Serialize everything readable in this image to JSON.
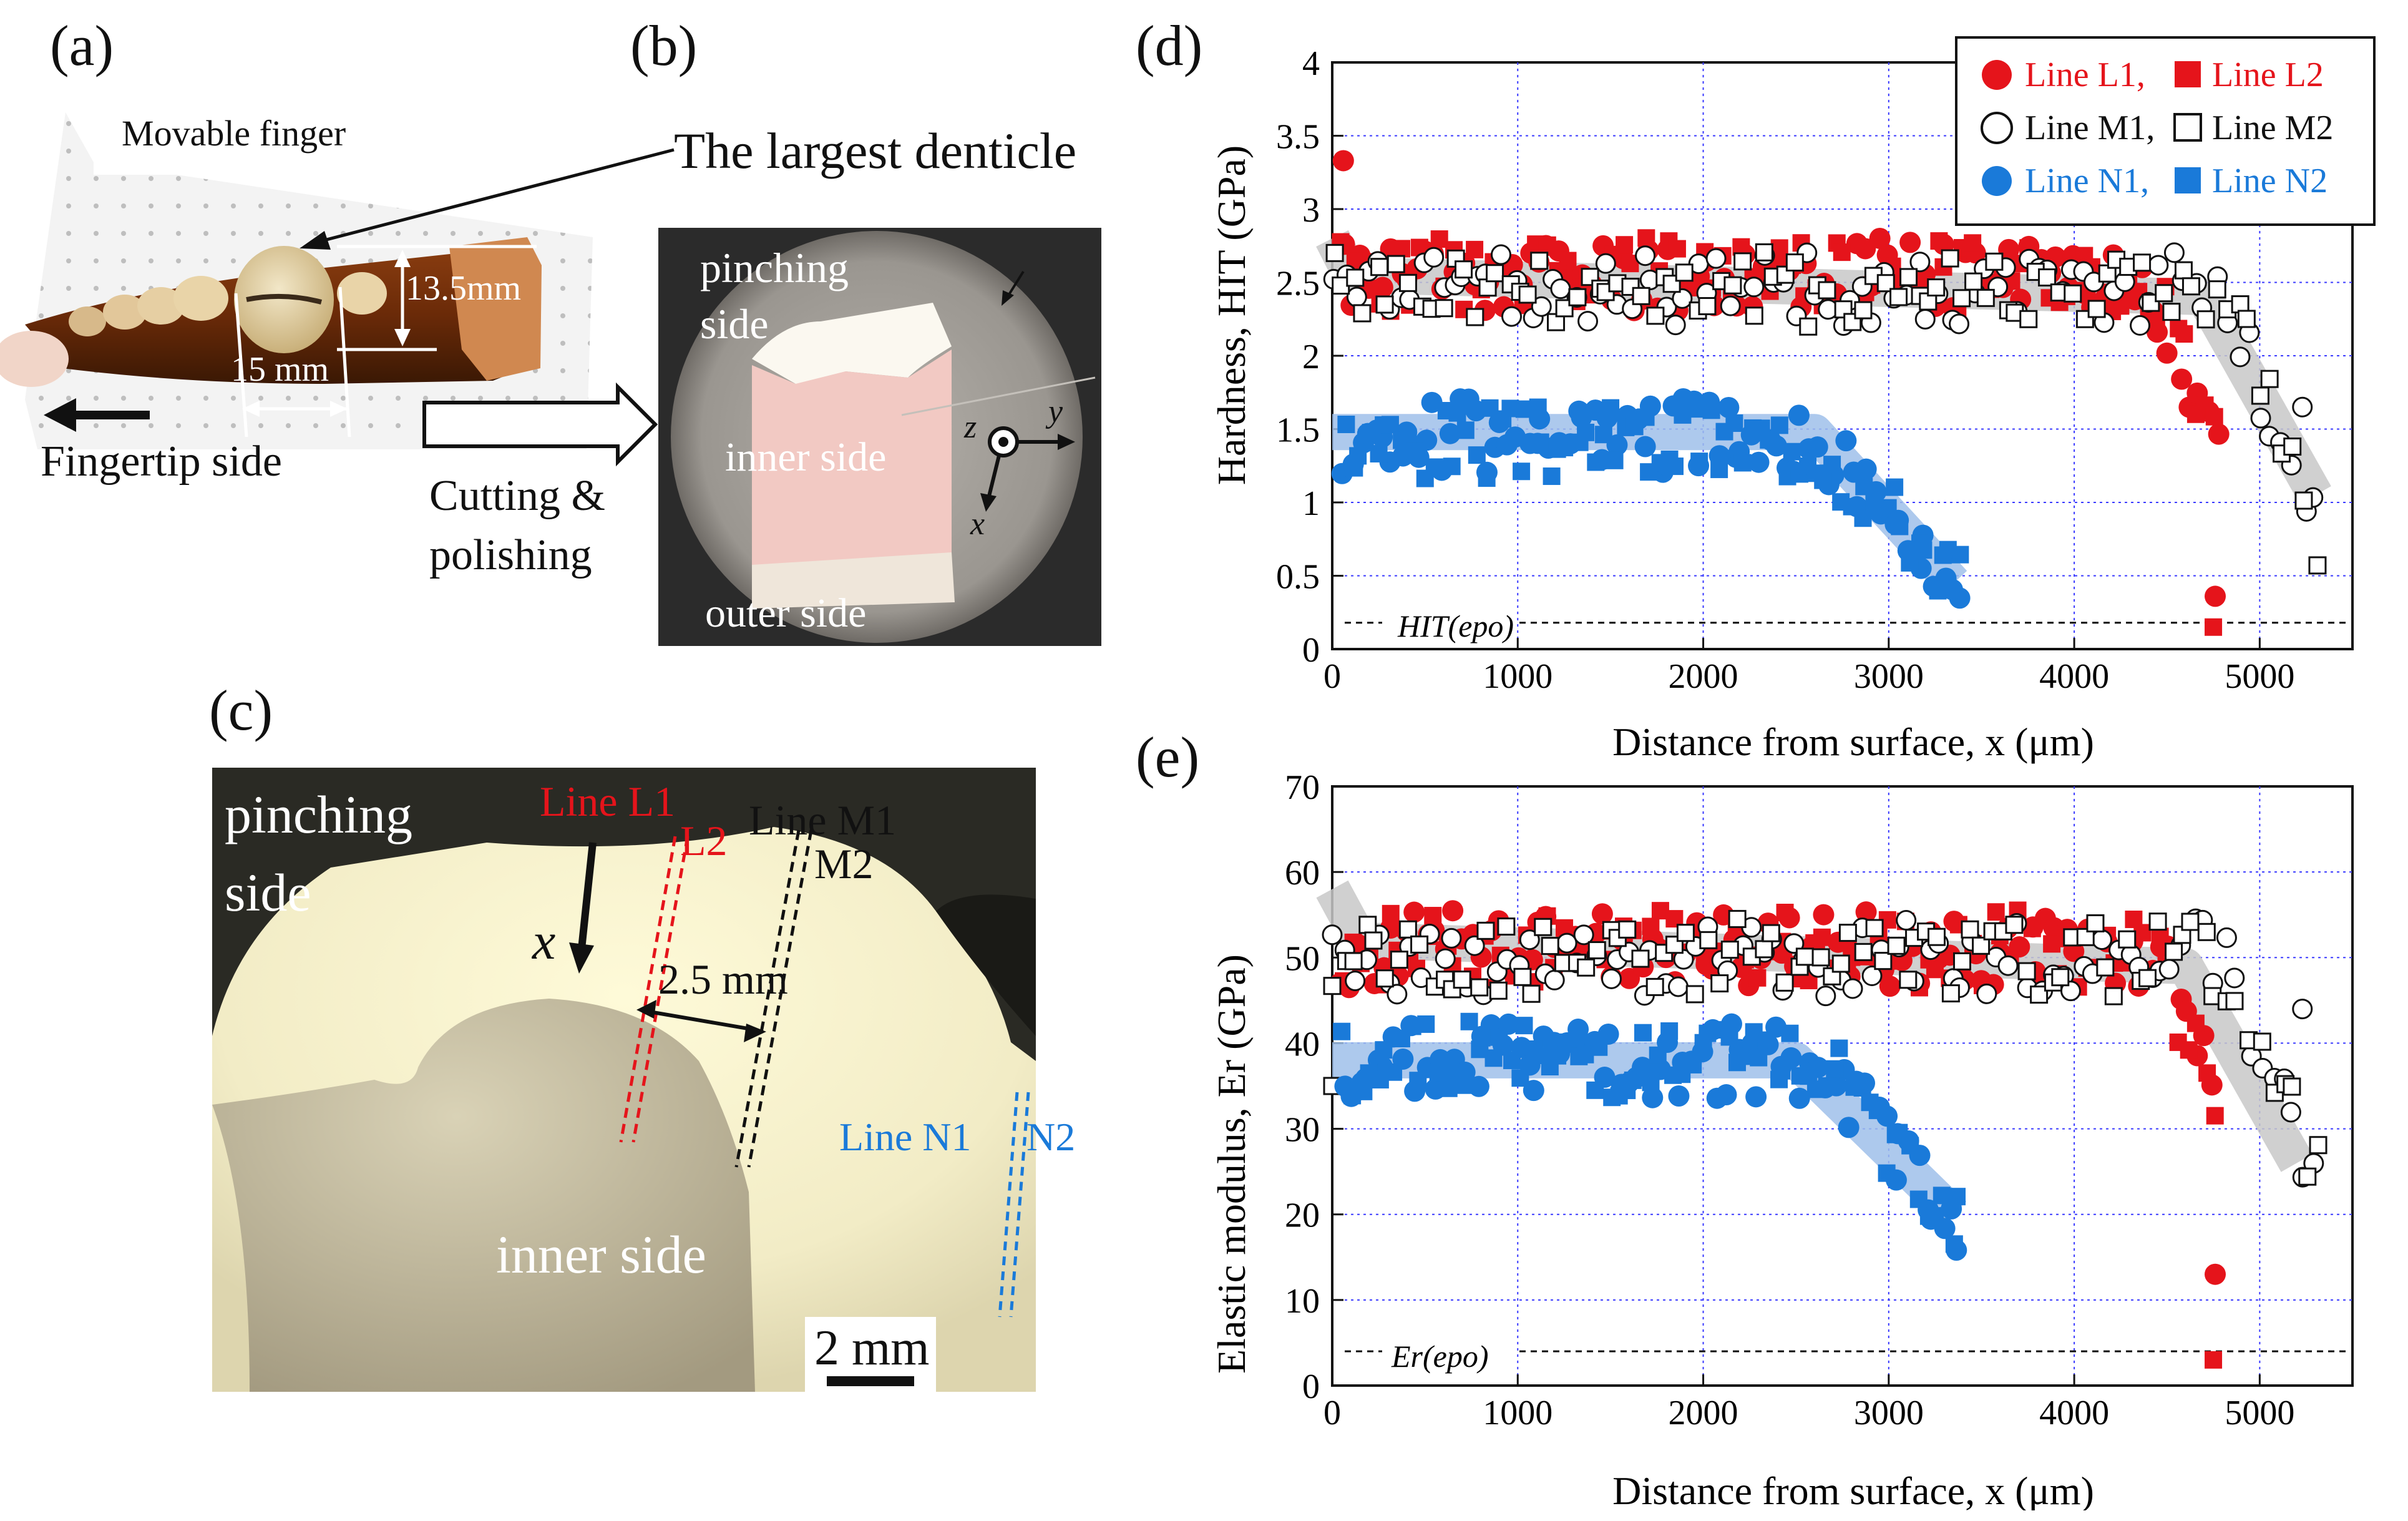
{
  "panel_labels": {
    "a": "(a)",
    "b": "(b)",
    "c": "(c)",
    "d": "(d)",
    "e": "(e)"
  },
  "panel_a": {
    "movable_finger": "Movable finger",
    "largest_denticle": "The largest denticle",
    "dim_height": "13.5mm",
    "dim_width": "15 mm",
    "fingertip": "Fingertip side",
    "cutting": "Cutting &",
    "polishing": "polishing"
  },
  "panel_b": {
    "pinching": "pinching",
    "side": "side",
    "inner": "inner side",
    "outer": "outer side",
    "axis_z": "z",
    "axis_y": "y",
    "axis_x": "x"
  },
  "panel_c": {
    "pinching": "pinching",
    "side": "side",
    "inner": "inner side",
    "x_arrow": "x",
    "line_l1": "Line L1",
    "l2": "L2",
    "line_m1": "Line M1",
    "m2": "M2",
    "spacing": "2.5 mm",
    "line_n1": "Line N1",
    "n2": "N2",
    "scale": "2 mm"
  },
  "colors": {
    "red": "#e5141b",
    "blue": "#1a7ad9",
    "black": "#111111",
    "gray_band": "#c8c8c8",
    "blue_band": "#9fc0ea",
    "grid": "#3a3aff"
  },
  "chart_data": [
    {
      "type": "scatter",
      "panel": "d",
      "title": "",
      "xlabel": "Distance from surface,  x (μm)",
      "ylabel": "Hardness, HIT (GPa)",
      "xlim": [
        0,
        5500
      ],
      "ylim": [
        0,
        4
      ],
      "xticks": [
        0,
        1000,
        2000,
        3000,
        4000,
        5000
      ],
      "yticks": [
        0,
        0.5,
        1,
        1.5,
        2,
        2.5,
        3,
        3.5,
        4
      ],
      "ytick_labels": [
        "0",
        "0.5",
        "1",
        "1.5",
        "2",
        "2.5",
        "3",
        "3.5",
        "4"
      ],
      "grid": true,
      "reference_line": {
        "label": "HIT(epo)",
        "y": 0.18
      },
      "legend": [
        "Line L1,",
        "Line L2",
        "Line M1,",
        "Line M2",
        "Line N1,",
        "Line N2"
      ],
      "bands": [
        {
          "name": "L/M trend",
          "color": "gray",
          "x": [
            0,
            100,
            4700,
            5300
          ],
          "y": [
            2.8,
            2.55,
            2.4,
            1.05
          ]
        },
        {
          "name": "N trend",
          "color": "blue",
          "x": [
            0,
            2600,
            3350
          ],
          "y": [
            1.48,
            1.48,
            0.45
          ]
        }
      ],
      "series": [
        {
          "name": "Line L1",
          "marker": "circle",
          "fill": "red",
          "mean": 2.55,
          "x_range": [
            60,
            4760
          ],
          "n": 95,
          "seed": 11,
          "tail": {
            "from": 4400,
            "to": 4760,
            "y_end": 1.4
          },
          "extra": [
            [
              60,
              3.33
            ],
            [
              4760,
              0.36
            ]
          ]
        },
        {
          "name": "Line L2",
          "marker": "square",
          "fill": "red",
          "mean": 2.55,
          "x_range": [
            60,
            4760
          ],
          "n": 95,
          "seed": 23,
          "tail": {
            "from": 4400,
            "to": 4760,
            "y_end": 1.5
          },
          "extra": [
            [
              4750,
              0.15
            ]
          ]
        },
        {
          "name": "Line M1",
          "marker": "circle",
          "fill": "none",
          "mean": 2.45,
          "x_range": [
            0,
            5300
          ],
          "n": 90,
          "seed": 37,
          "tail": {
            "from": 4800,
            "to": 5300,
            "y_end": 0.85
          },
          "extra": [
            [
              5230,
              1.65
            ]
          ]
        },
        {
          "name": "Line M2",
          "marker": "square",
          "fill": "none",
          "mean": 2.45,
          "x_range": [
            0,
            5300
          ],
          "n": 90,
          "seed": 41,
          "tail": {
            "from": 4800,
            "to": 5300,
            "y_end": 0.85
          },
          "extra": []
        },
        {
          "name": "Line N1",
          "marker": "circle",
          "fill": "blue",
          "mean": 1.45,
          "x_range": [
            60,
            3380
          ],
          "n": 75,
          "seed": 53,
          "tail": {
            "from": 2600,
            "to": 3380,
            "y_end": 0.45
          },
          "extra": []
        },
        {
          "name": "Line N2",
          "marker": "square",
          "fill": "blue",
          "mean": 1.42,
          "x_range": [
            60,
            3380
          ],
          "n": 75,
          "seed": 67,
          "tail": {
            "from": 2600,
            "to": 3380,
            "y_end": 0.5
          },
          "extra": []
        }
      ]
    },
    {
      "type": "scatter",
      "panel": "e",
      "title": "",
      "xlabel": "Distance from surface,  x (μm)",
      "ylabel": "Elastic modulus, Er (GPa)",
      "xlim": [
        0,
        5500
      ],
      "ylim": [
        0,
        70
      ],
      "xticks": [
        0,
        1000,
        2000,
        3000,
        4000,
        5000
      ],
      "yticks": [
        0,
        10,
        20,
        30,
        40,
        50,
        60,
        70
      ],
      "ytick_labels": [
        "0",
        "10",
        "20",
        "30",
        "40",
        "50",
        "60",
        "70"
      ],
      "grid": true,
      "reference_line": {
        "label": "Er(epo)",
        "y": 4
      },
      "bands": [
        {
          "name": "L/M trend",
          "color": "gray",
          "x": [
            0,
            150,
            4600,
            5200
          ],
          "y": [
            58,
            52,
            49,
            26
          ]
        },
        {
          "name": "N trend",
          "color": "blue",
          "x": [
            0,
            2500,
            3350
          ],
          "y": [
            38,
            38,
            20
          ]
        }
      ],
      "series": [
        {
          "name": "Line L1",
          "marker": "circle",
          "fill": "red",
          "mean": 51,
          "x_range": [
            60,
            4760
          ],
          "n": 95,
          "seed": 71,
          "tail": {
            "from": 4400,
            "to": 4760,
            "y_end": 37
          },
          "extra": [
            [
              4760,
              13
            ]
          ]
        },
        {
          "name": "Line L2",
          "marker": "square",
          "fill": "red",
          "mean": 51,
          "x_range": [
            60,
            4760
          ],
          "n": 95,
          "seed": 83,
          "tail": {
            "from": 4400,
            "to": 4760,
            "y_end": 35
          },
          "extra": [
            [
              4750,
              3
            ]
          ]
        },
        {
          "name": "Line M1",
          "marker": "circle",
          "fill": "none",
          "mean": 50,
          "x_range": [
            0,
            5300
          ],
          "n": 90,
          "seed": 97,
          "tail": {
            "from": 4800,
            "to": 5300,
            "y_end": 24
          },
          "extra": [
            [
              5230,
              44
            ]
          ]
        },
        {
          "name": "Line M2",
          "marker": "square",
          "fill": "none",
          "mean": 50,
          "x_range": [
            0,
            5300
          ],
          "n": 90,
          "seed": 101,
          "tail": {
            "from": 4800,
            "to": 5300,
            "y_end": 25
          },
          "extra": [
            [
              0,
              35
            ]
          ]
        },
        {
          "name": "Line N1",
          "marker": "circle",
          "fill": "blue",
          "mean": 38,
          "x_range": [
            60,
            3380
          ],
          "n": 75,
          "seed": 113,
          "tail": {
            "from": 2600,
            "to": 3380,
            "y_end": 18
          },
          "extra": []
        },
        {
          "name": "Line N2",
          "marker": "square",
          "fill": "blue",
          "mean": 38,
          "x_range": [
            60,
            3380
          ],
          "n": 75,
          "seed": 127,
          "tail": {
            "from": 2600,
            "to": 3380,
            "y_end": 20
          },
          "extra": []
        }
      ]
    }
  ]
}
